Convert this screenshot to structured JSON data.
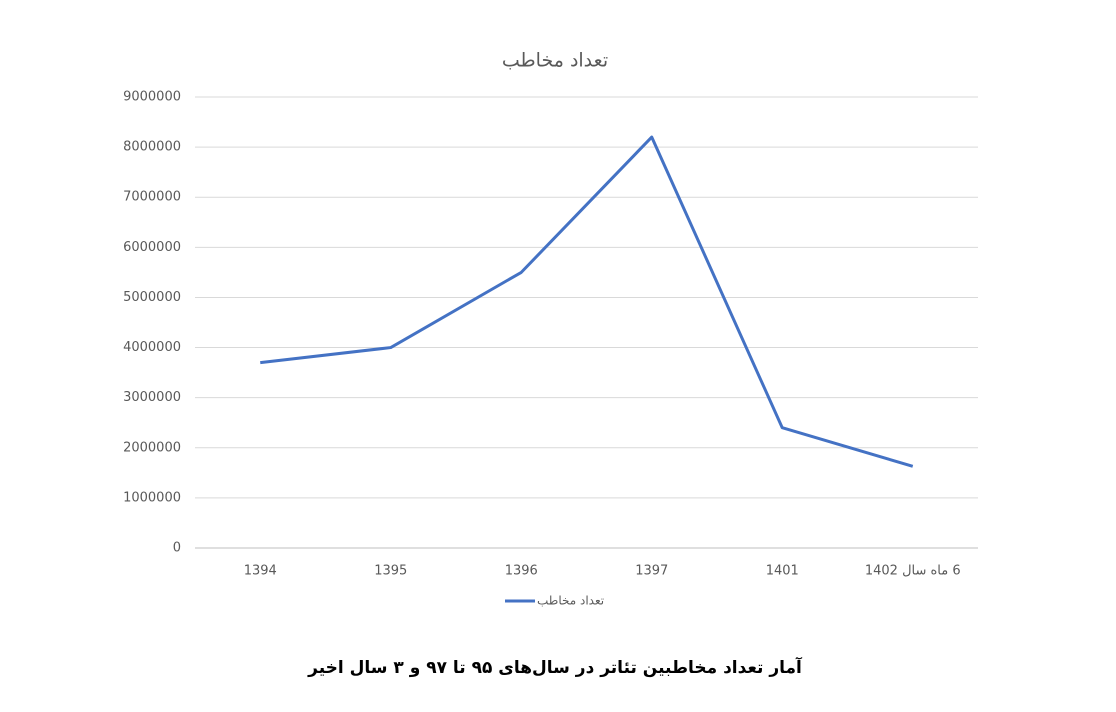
{
  "chart_data": {
    "type": "line",
    "title": "تعداد مخاطب",
    "categories": [
      "1394",
      "1395",
      "1396",
      "1397",
      "1401",
      "6 ماه سال 1402"
    ],
    "series": [
      {
        "name": "تعداد مخاطب",
        "color": "#4472c4",
        "values": [
          3700000,
          4000000,
          5500000,
          8200000,
          2400000,
          1630000
        ]
      }
    ],
    "ylim": [
      0,
      9000000
    ],
    "yticks": [
      0,
      1000000,
      2000000,
      3000000,
      4000000,
      5000000,
      6000000,
      7000000,
      8000000,
      9000000
    ],
    "grid": true,
    "legend": "bottom",
    "caption": "آمار تعداد مخاطبین تئاتر در سال‌های ۹۵ تا ۹۷ و ۳ سال اخیر"
  }
}
